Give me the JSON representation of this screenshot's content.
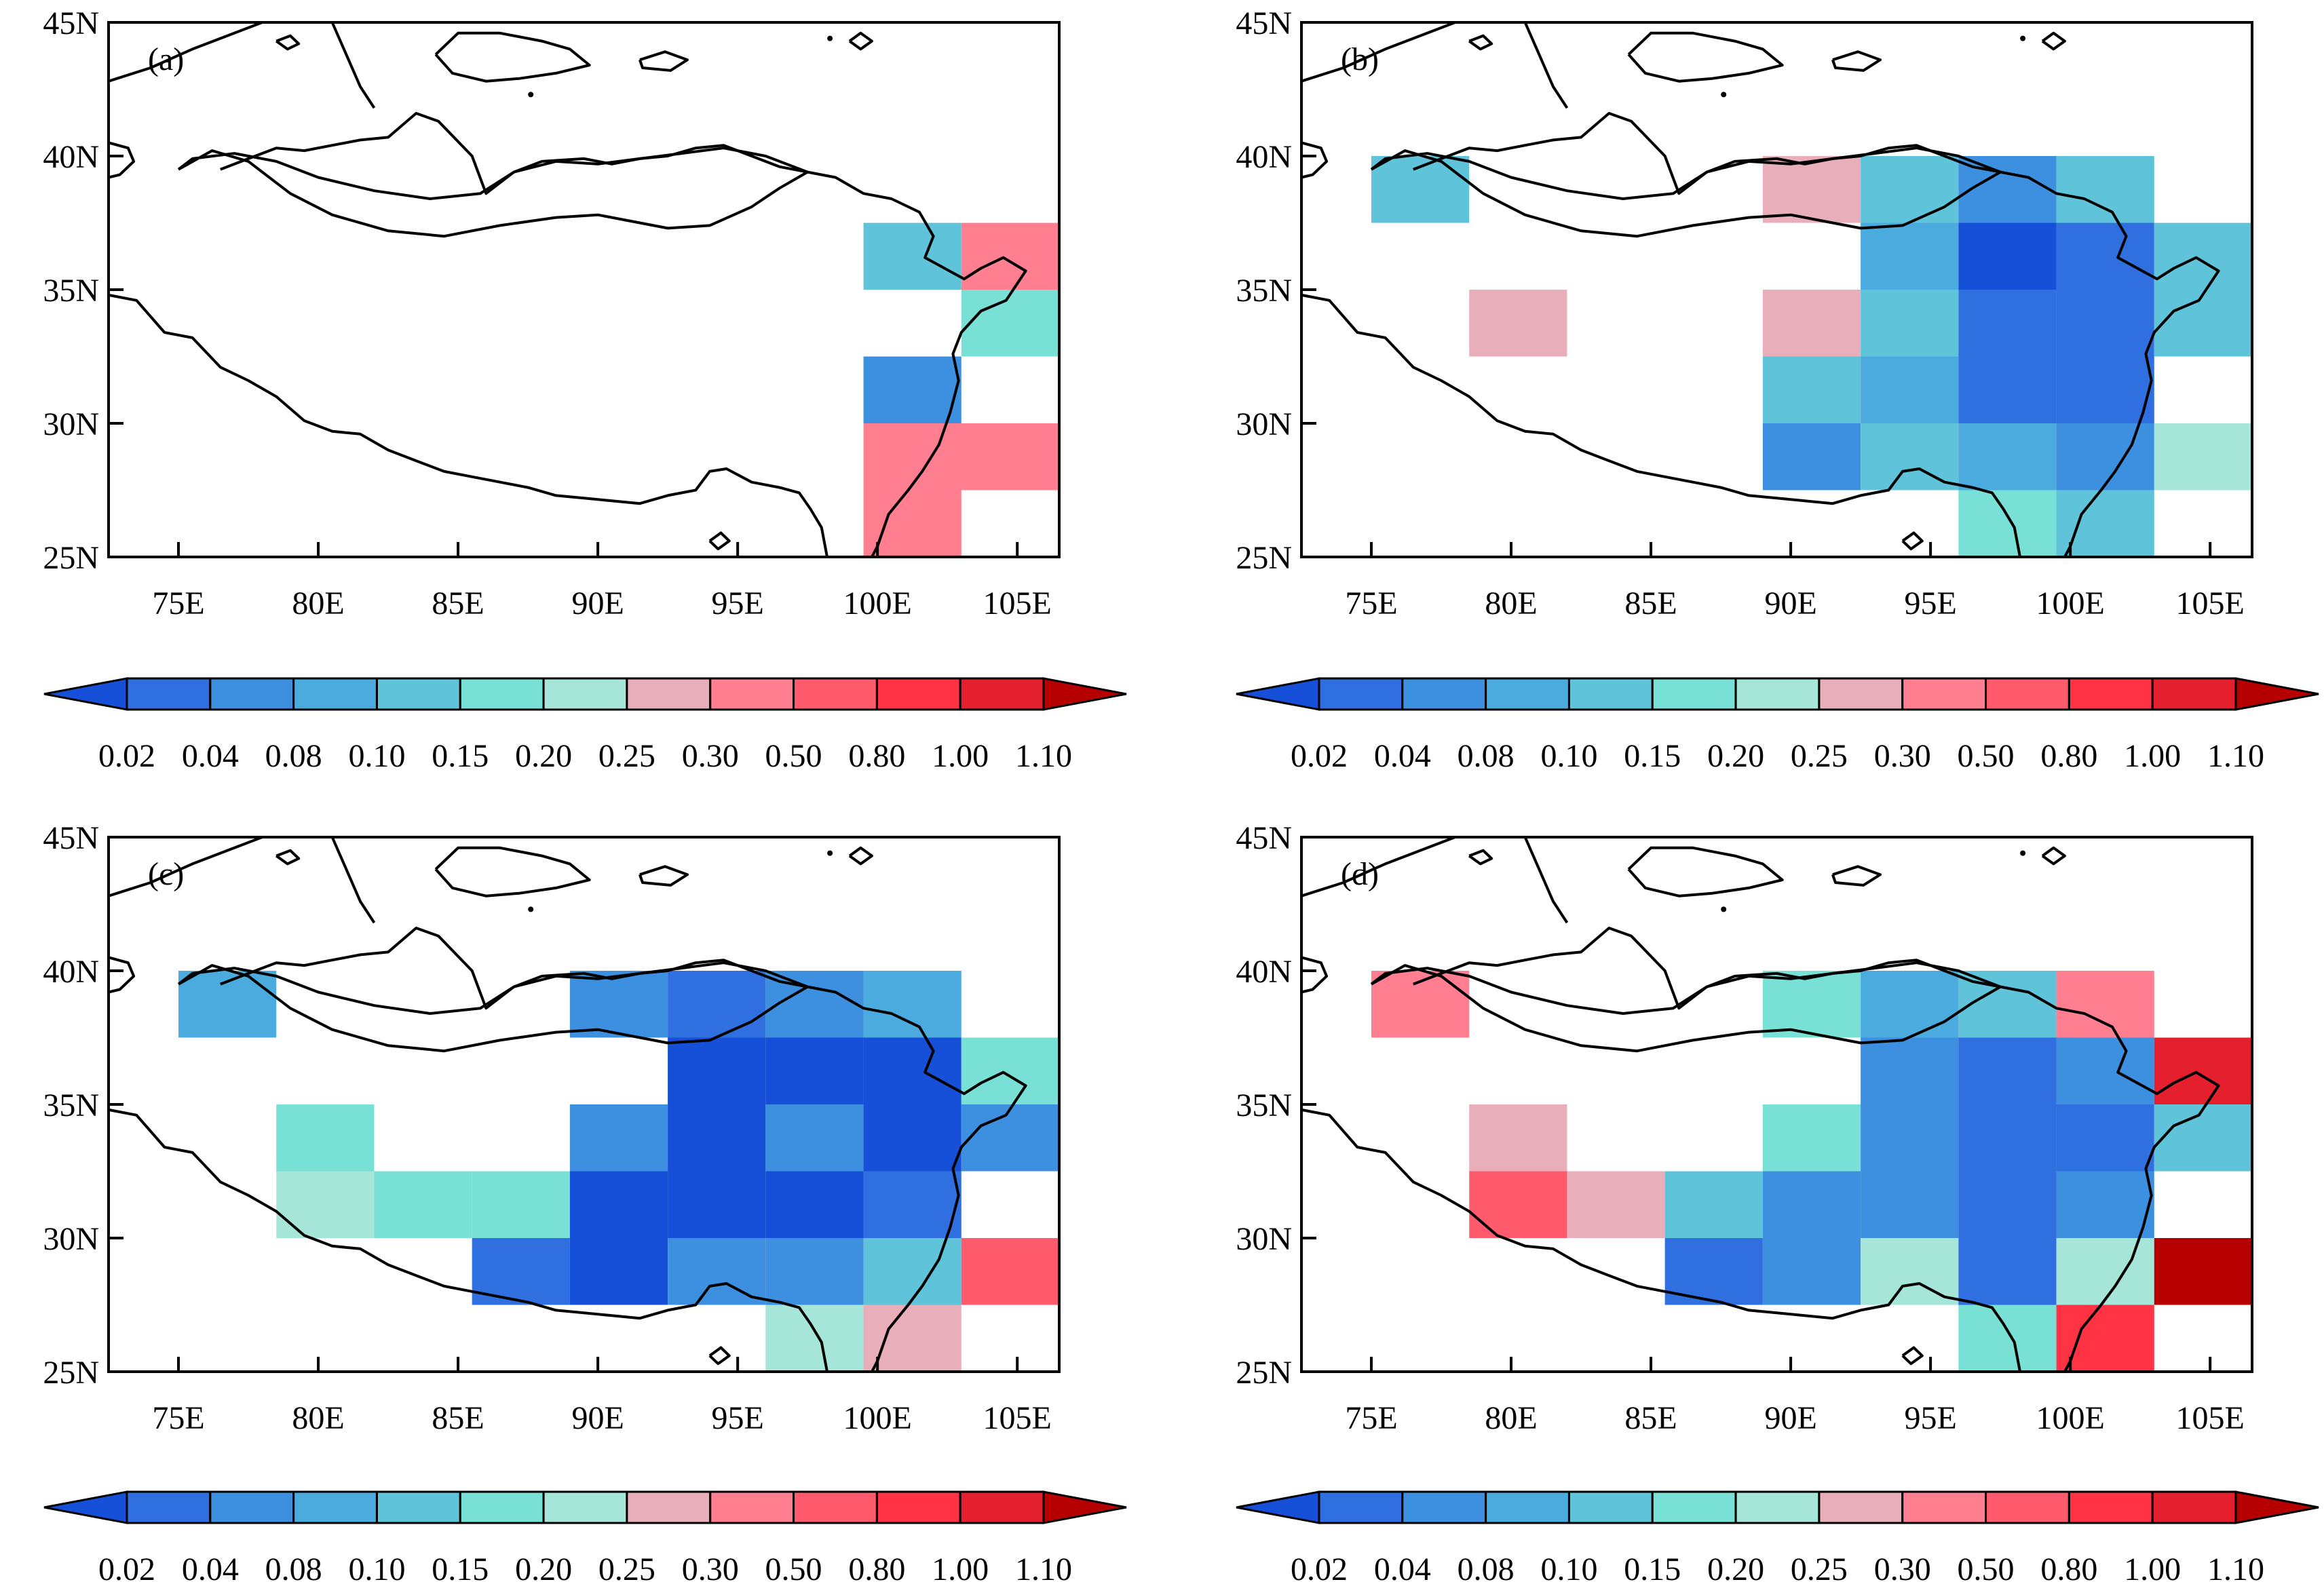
{
  "colorbar": {
    "levels": [
      "0.02",
      "0.04",
      "0.08",
      "0.10",
      "0.15",
      "0.20",
      "0.25",
      "0.30",
      "0.50",
      "0.80",
      "1.00",
      "1.10"
    ],
    "colors": [
      "#1650d8",
      "#2f6fdf",
      "#3d90e0",
      "#4cabde",
      "#5fc4da",
      "#78e0d4",
      "#a5e6d8",
      "#e8aeb9",
      "#ff7e8f",
      "#ff5b6d",
      "#ff3344",
      "#e4202e",
      "#b60000"
    ]
  },
  "axes": {
    "lat_labels": [
      "25N",
      "30N",
      "35N",
      "40N",
      "45N"
    ],
    "lon_labels": [
      "75E",
      "80E",
      "85E",
      "90E",
      "95E",
      "100E",
      "105E"
    ]
  },
  "panels": [
    {
      "label": "(a)",
      "cells": [
        {
          "lon0": 99.5,
          "lat0": 35,
          "lon1": 103,
          "lat1": 37.5,
          "c": 4
        },
        {
          "lon0": 103,
          "lat0": 35,
          "lon1": 106.5,
          "lat1": 37.5,
          "c": 8
        },
        {
          "lon0": 103,
          "lat0": 32.5,
          "lon1": 106.5,
          "lat1": 35,
          "c": 5
        },
        {
          "lon0": 99.5,
          "lat0": 30,
          "lon1": 103,
          "lat1": 32.5,
          "c": 2
        },
        {
          "lon0": 99.5,
          "lat0": 27.5,
          "lon1": 106.5,
          "lat1": 30,
          "c": 8
        },
        {
          "lon0": 99.5,
          "lat0": 25,
          "lon1": 103,
          "lat1": 27.5,
          "c": 8
        }
      ]
    },
    {
      "label": "(b)",
      "cells": [
        {
          "lon0": 75,
          "lat0": 37.5,
          "lon1": 78.5,
          "lat1": 40,
          "c": 4
        },
        {
          "lon0": 89,
          "lat0": 37.5,
          "lon1": 92.5,
          "lat1": 40,
          "c": 7
        },
        {
          "lon0": 92.5,
          "lat0": 37.5,
          "lon1": 96,
          "lat1": 40,
          "c": 4
        },
        {
          "lon0": 96,
          "lat0": 37.5,
          "lon1": 99.5,
          "lat1": 40,
          "c": 2
        },
        {
          "lon0": 99.5,
          "lat0": 37.5,
          "lon1": 103,
          "lat1": 40,
          "c": 4
        },
        {
          "lon0": 92.5,
          "lat0": 35,
          "lon1": 96,
          "lat1": 37.5,
          "c": 3
        },
        {
          "lon0": 96,
          "lat0": 35,
          "lon1": 99.5,
          "lat1": 37.5,
          "c": 0
        },
        {
          "lon0": 99.5,
          "lat0": 35,
          "lon1": 103,
          "lat1": 37.5,
          "c": 1
        },
        {
          "lon0": 103,
          "lat0": 35,
          "lon1": 106.5,
          "lat1": 37.5,
          "c": 4
        },
        {
          "lon0": 78.5,
          "lat0": 32.5,
          "lon1": 82,
          "lat1": 35,
          "c": 7
        },
        {
          "lon0": 89,
          "lat0": 32.5,
          "lon1": 92.5,
          "lat1": 35,
          "c": 7
        },
        {
          "lon0": 92.5,
          "lat0": 32.5,
          "lon1": 96,
          "lat1": 35,
          "c": 4
        },
        {
          "lon0": 96,
          "lat0": 32.5,
          "lon1": 99.5,
          "lat1": 35,
          "c": 1
        },
        {
          "lon0": 99.5,
          "lat0": 32.5,
          "lon1": 103,
          "lat1": 35,
          "c": 1
        },
        {
          "lon0": 103,
          "lat0": 32.5,
          "lon1": 106.5,
          "lat1": 35,
          "c": 4
        },
        {
          "lon0": 89,
          "lat0": 30,
          "lon1": 92.5,
          "lat1": 32.5,
          "c": 4
        },
        {
          "lon0": 92.5,
          "lat0": 30,
          "lon1": 96,
          "lat1": 32.5,
          "c": 3
        },
        {
          "lon0": 96,
          "lat0": 30,
          "lon1": 99.5,
          "lat1": 32.5,
          "c": 1
        },
        {
          "lon0": 99.5,
          "lat0": 30,
          "lon1": 103,
          "lat1": 32.5,
          "c": 1
        },
        {
          "lon0": 89,
          "lat0": 27.5,
          "lon1": 92.5,
          "lat1": 30,
          "c": 2
        },
        {
          "lon0": 92.5,
          "lat0": 27.5,
          "lon1": 96,
          "lat1": 30,
          "c": 4
        },
        {
          "lon0": 96,
          "lat0": 27.5,
          "lon1": 99.5,
          "lat1": 30,
          "c": 3
        },
        {
          "lon0": 99.5,
          "lat0": 27.5,
          "lon1": 103,
          "lat1": 30,
          "c": 2
        },
        {
          "lon0": 103,
          "lat0": 27.5,
          "lon1": 106.5,
          "lat1": 30,
          "c": 6
        },
        {
          "lon0": 96,
          "lat0": 25,
          "lon1": 99.5,
          "lat1": 27.5,
          "c": 5
        },
        {
          "lon0": 99.5,
          "lat0": 25,
          "lon1": 103,
          "lat1": 27.5,
          "c": 4
        }
      ]
    },
    {
      "label": "(c)",
      "cells": [
        {
          "lon0": 75,
          "lat0": 37.5,
          "lon1": 78.5,
          "lat1": 40,
          "c": 3
        },
        {
          "lon0": 89,
          "lat0": 37.5,
          "lon1": 92.5,
          "lat1": 40,
          "c": 2
        },
        {
          "lon0": 92.5,
          "lat0": 37.5,
          "lon1": 96,
          "lat1": 40,
          "c": 1
        },
        {
          "lon0": 96,
          "lat0": 37.5,
          "lon1": 99.5,
          "lat1": 40,
          "c": 2
        },
        {
          "lon0": 99.5,
          "lat0": 37.5,
          "lon1": 103,
          "lat1": 40,
          "c": 3
        },
        {
          "lon0": 92.5,
          "lat0": 35,
          "lon1": 96,
          "lat1": 37.5,
          "c": 0
        },
        {
          "lon0": 96,
          "lat0": 35,
          "lon1": 99.5,
          "lat1": 37.5,
          "c": 0
        },
        {
          "lon0": 99.5,
          "lat0": 35,
          "lon1": 103,
          "lat1": 37.5,
          "c": 0
        },
        {
          "lon0": 103,
          "lat0": 35,
          "lon1": 106.5,
          "lat1": 37.5,
          "c": 5
        },
        {
          "lon0": 78.5,
          "lat0": 32.5,
          "lon1": 82,
          "lat1": 35,
          "c": 5
        },
        {
          "lon0": 89,
          "lat0": 32.5,
          "lon1": 92.5,
          "lat1": 35,
          "c": 2
        },
        {
          "lon0": 92.5,
          "lat0": 32.5,
          "lon1": 96,
          "lat1": 35,
          "c": 0
        },
        {
          "lon0": 96,
          "lat0": 32.5,
          "lon1": 99.5,
          "lat1": 35,
          "c": 2
        },
        {
          "lon0": 99.5,
          "lat0": 32.5,
          "lon1": 103,
          "lat1": 35,
          "c": 0
        },
        {
          "lon0": 103,
          "lat0": 32.5,
          "lon1": 106.5,
          "lat1": 35,
          "c": 2
        },
        {
          "lon0": 78.5,
          "lat0": 30,
          "lon1": 82,
          "lat1": 32.5,
          "c": 6
        },
        {
          "lon0": 82,
          "lat0": 30,
          "lon1": 85.5,
          "lat1": 32.5,
          "c": 5
        },
        {
          "lon0": 85.5,
          "lat0": 30,
          "lon1": 89,
          "lat1": 32.5,
          "c": 5
        },
        {
          "lon0": 89,
          "lat0": 30,
          "lon1": 92.5,
          "lat1": 32.5,
          "c": 0
        },
        {
          "lon0": 92.5,
          "lat0": 30,
          "lon1": 96,
          "lat1": 32.5,
          "c": 0
        },
        {
          "lon0": 96,
          "lat0": 30,
          "lon1": 99.5,
          "lat1": 32.5,
          "c": 0
        },
        {
          "lon0": 99.5,
          "lat0": 30,
          "lon1": 103,
          "lat1": 32.5,
          "c": 1
        },
        {
          "lon0": 85.5,
          "lat0": 27.5,
          "lon1": 89,
          "lat1": 30,
          "c": 1
        },
        {
          "lon0": 89,
          "lat0": 27.5,
          "lon1": 92.5,
          "lat1": 30,
          "c": 0
        },
        {
          "lon0": 92.5,
          "lat0": 27.5,
          "lon1": 96,
          "lat1": 30,
          "c": 2
        },
        {
          "lon0": 96,
          "lat0": 27.5,
          "lon1": 99.5,
          "lat1": 30,
          "c": 2
        },
        {
          "lon0": 99.5,
          "lat0": 27.5,
          "lon1": 103,
          "lat1": 30,
          "c": 4
        },
        {
          "lon0": 103,
          "lat0": 27.5,
          "lon1": 106.5,
          "lat1": 30,
          "c": 9
        },
        {
          "lon0": 96,
          "lat0": 25,
          "lon1": 99.5,
          "lat1": 27.5,
          "c": 6
        },
        {
          "lon0": 99.5,
          "lat0": 25,
          "lon1": 103,
          "lat1": 27.5,
          "c": 7
        }
      ]
    },
    {
      "label": "(d)",
      "cells": [
        {
          "lon0": 75,
          "lat0": 37.5,
          "lon1": 78.5,
          "lat1": 40,
          "c": 8
        },
        {
          "lon0": 89,
          "lat0": 37.5,
          "lon1": 92.5,
          "lat1": 40,
          "c": 5
        },
        {
          "lon0": 92.5,
          "lat0": 37.5,
          "lon1": 96,
          "lat1": 40,
          "c": 3
        },
        {
          "lon0": 96,
          "lat0": 37.5,
          "lon1": 99.5,
          "lat1": 40,
          "c": 4
        },
        {
          "lon0": 99.5,
          "lat0": 37.5,
          "lon1": 103,
          "lat1": 40,
          "c": 8
        },
        {
          "lon0": 92.5,
          "lat0": 35,
          "lon1": 96,
          "lat1": 37.5,
          "c": 2
        },
        {
          "lon0": 96,
          "lat0": 35,
          "lon1": 99.5,
          "lat1": 37.5,
          "c": 1
        },
        {
          "lon0": 99.5,
          "lat0": 35,
          "lon1": 103,
          "lat1": 37.5,
          "c": 2
        },
        {
          "lon0": 103,
          "lat0": 35,
          "lon1": 106.5,
          "lat1": 37.5,
          "c": 11
        },
        {
          "lon0": 78.5,
          "lat0": 32.5,
          "lon1": 82,
          "lat1": 35,
          "c": 7
        },
        {
          "lon0": 89,
          "lat0": 32.5,
          "lon1": 92.5,
          "lat1": 35,
          "c": 5
        },
        {
          "lon0": 92.5,
          "lat0": 32.5,
          "lon1": 96,
          "lat1": 35,
          "c": 2
        },
        {
          "lon0": 96,
          "lat0": 32.5,
          "lon1": 99.5,
          "lat1": 35,
          "c": 1
        },
        {
          "lon0": 99.5,
          "lat0": 32.5,
          "lon1": 103,
          "lat1": 35,
          "c": 1
        },
        {
          "lon0": 103,
          "lat0": 32.5,
          "lon1": 106.5,
          "lat1": 35,
          "c": 4
        },
        {
          "lon0": 78.5,
          "lat0": 30,
          "lon1": 82,
          "lat1": 32.5,
          "c": 9
        },
        {
          "lon0": 82,
          "lat0": 30,
          "lon1": 85.5,
          "lat1": 32.5,
          "c": 7
        },
        {
          "lon0": 85.5,
          "lat0": 30,
          "lon1": 89,
          "lat1": 32.5,
          "c": 4
        },
        {
          "lon0": 89,
          "lat0": 30,
          "lon1": 92.5,
          "lat1": 32.5,
          "c": 2
        },
        {
          "lon0": 92.5,
          "lat0": 30,
          "lon1": 96,
          "lat1": 32.5,
          "c": 2
        },
        {
          "lon0": 96,
          "lat0": 30,
          "lon1": 99.5,
          "lat1": 32.5,
          "c": 1
        },
        {
          "lon0": 99.5,
          "lat0": 30,
          "lon1": 103,
          "lat1": 32.5,
          "c": 2
        },
        {
          "lon0": 85.5,
          "lat0": 27.5,
          "lon1": 89,
          "lat1": 30,
          "c": 1
        },
        {
          "lon0": 89,
          "lat0": 27.5,
          "lon1": 92.5,
          "lat1": 30,
          "c": 2
        },
        {
          "lon0": 92.5,
          "lat0": 27.5,
          "lon1": 96,
          "lat1": 30,
          "c": 6
        },
        {
          "lon0": 96,
          "lat0": 27.5,
          "lon1": 99.5,
          "lat1": 30,
          "c": 1
        },
        {
          "lon0": 99.5,
          "lat0": 27.5,
          "lon1": 103,
          "lat1": 30,
          "c": 6
        },
        {
          "lon0": 103,
          "lat0": 27.5,
          "lon1": 106.5,
          "lat1": 30,
          "c": 12
        },
        {
          "lon0": 96,
          "lat0": 25,
          "lon1": 99.5,
          "lat1": 27.5,
          "c": 5
        },
        {
          "lon0": 99.5,
          "lat0": 25,
          "lon1": 103,
          "lat1": 27.5,
          "c": 10
        }
      ]
    }
  ]
}
